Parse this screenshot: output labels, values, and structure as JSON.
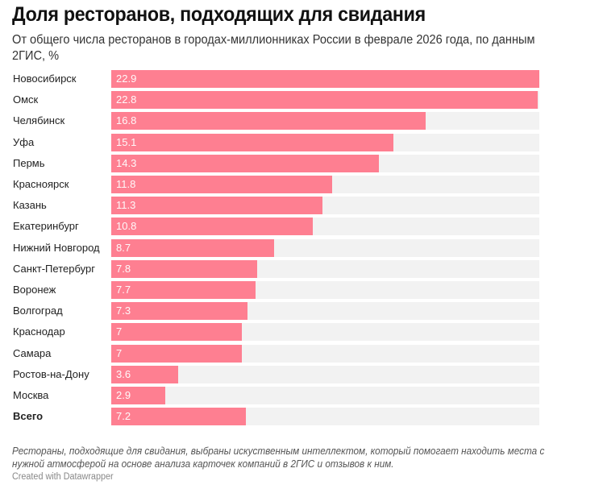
{
  "header": {
    "title": "Доля ресторанов, подходящих для свидания",
    "subtitle": "От общего числа ресторанов в городах-миллионниках России в феврале 2026 года, по данным 2ГИС, %"
  },
  "footer": {
    "notes": "Рестораны, подходящие для свидания, выбраны искуственным интеллектом, который помогает находить места с нужной атмосферой на основе анализа карточек компаний в 2ГИС и отзывов к ним.",
    "credit": "Created with Datawrapper"
  },
  "colors": {
    "bar": "#fe7f91",
    "track": "#f2f2f2"
  },
  "chart_data": {
    "type": "bar",
    "orientation": "horizontal",
    "title": "Доля ресторанов, подходящих для свидания",
    "subtitle": "От общего числа ресторанов в городах-миллионниках России в феврале 2026 года, по данным 2ГИС, %",
    "xlabel": "",
    "ylabel": "",
    "xlim": [
      0,
      22.9
    ],
    "grid": false,
    "legend": "none",
    "categories": [
      "Новосибирск",
      "Омск",
      "Челябинск",
      "Уфа",
      "Пермь",
      "Красноярск",
      "Казань",
      "Екатеринбург",
      "Нижний Новгород",
      "Санкт-Петербург",
      "Воронеж",
      "Волгоград",
      "Краснодар",
      "Самара",
      "Ростов-на-Дону",
      "Москва",
      "Всего"
    ],
    "values": [
      22.9,
      22.8,
      16.8,
      15.1,
      14.3,
      11.8,
      11.3,
      10.8,
      8.7,
      7.8,
      7.7,
      7.3,
      7,
      7,
      3.6,
      2.9,
      7.2
    ],
    "value_labels": [
      "22.9",
      "22.8",
      "16.8",
      "15.1",
      "14.3",
      "11.8",
      "11.3",
      "10.8",
      "8.7",
      "7.8",
      "7.7",
      "7.3",
      "7",
      "7",
      "3.6",
      "2.9",
      "7.2"
    ],
    "bold_categories": [
      "Всего"
    ]
  }
}
